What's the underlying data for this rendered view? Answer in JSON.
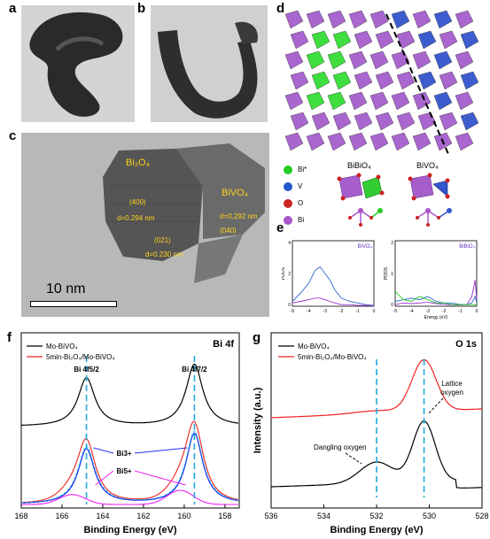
{
  "panels": {
    "a": {
      "label": "a"
    },
    "b": {
      "label": "b"
    },
    "c": {
      "label": "c",
      "bi2o4": "Bi₂O₄",
      "bivo4": "BiVO₄",
      "plane_400": "(400)",
      "plane_021": "(021)",
      "plane_040": "(040)",
      "d_400": "d=0.294 nm",
      "d_021": "d=0.230 nm",
      "d_040": "d=0.292 nm",
      "scalebar": "10 nm"
    },
    "d": {
      "label": "d",
      "legend": [
        "Bi*",
        "V",
        "O",
        "Bi"
      ],
      "legend_colors": [
        "#22cc22",
        "#2255cc",
        "#cc2222",
        "#aa55cc"
      ],
      "cluster_bibio": "BiBiO₄",
      "cluster_bivo": "BiVO₄"
    },
    "e": {
      "label": "e",
      "left_title": "BiVO₄",
      "right_title": "BiBiO₄",
      "ylabel": "PDOS",
      "xlabel": "Energy (eV)",
      "left_yticks": [
        "4",
        "2",
        "0"
      ],
      "right_yticks": [
        "2",
        "1",
        "0"
      ],
      "xticks": [
        "-5",
        "-4",
        "-3",
        "-2",
        "-1",
        "0"
      ]
    },
    "f": {
      "label": "f",
      "title": "Bi 4f",
      "legend": [
        "Mo-BiVO₄",
        "5min-Bi₂O₄/Mo-BiVO₄"
      ],
      "peak_left": "Bi 4f5/2",
      "peak_right": "Bi 4f7/2",
      "bi3": "Bi3+",
      "bi5": "Bi5+",
      "xlabel": "Binding Energy (eV)",
      "xticks": [
        "168",
        "166",
        "164",
        "162",
        "160",
        "158"
      ]
    },
    "g": {
      "label": "g",
      "title": "O 1s",
      "legend": [
        "Mo-BiVO₄",
        "5min-Bi₂O₄/Mo-BiVO₄"
      ],
      "lattice": "Lattice oxygen",
      "dangling": "Dangling oxygen",
      "ylabel": "Intensity (a.u.)",
      "xlabel": "Binding Energy (eV)",
      "xticks": [
        "536",
        "534",
        "532",
        "530",
        "528"
      ]
    }
  },
  "chart_data": [
    {
      "type": "line",
      "panel": "e-left",
      "title": "BiVO₄",
      "xlabel": "Energy (eV)",
      "ylabel": "PDOS",
      "xlim": [
        -5,
        0
      ],
      "ylim": [
        0,
        4
      ],
      "x": [
        -5,
        -4.5,
        -4,
        -3.6,
        -3.3,
        -3,
        -2.7,
        -2.4,
        -2,
        -1.5,
        -1,
        -0.5,
        0
      ],
      "series": [
        {
          "color": "#3366cc",
          "values": [
            0.3,
            0.8,
            1.4,
            2.2,
            2.4,
            2.0,
            1.6,
            1.0,
            0.5,
            0.3,
            0.2,
            0.1,
            0.05
          ]
        },
        {
          "color": "#9933cc",
          "values": [
            0.2,
            0.3,
            0.4,
            0.5,
            0.5,
            0.4,
            0.3,
            0.2,
            0.1,
            0.1,
            0.05,
            0.05,
            0.02
          ]
        }
      ]
    },
    {
      "type": "line",
      "panel": "e-right",
      "title": "BiBiO₄",
      "xlabel": "Energy (eV)",
      "ylabel": "PDOS",
      "xlim": [
        -5,
        0
      ],
      "ylim": [
        0,
        2
      ],
      "x": [
        -5,
        -4.5,
        -4,
        -3.5,
        -3,
        -2.5,
        -2,
        -1.5,
        -1,
        -0.6,
        -0.3,
        -0.1,
        0
      ],
      "series": [
        {
          "color": "#3366cc",
          "values": [
            0.15,
            0.2,
            0.25,
            0.2,
            0.3,
            0.15,
            0.1,
            0.1,
            0.05,
            0.05,
            0.1,
            0.3,
            0.1
          ]
        },
        {
          "color": "#9933cc",
          "values": [
            0.05,
            0.1,
            0.08,
            0.1,
            0.12,
            0.08,
            0.06,
            0.04,
            0.04,
            0.05,
            0.3,
            0.8,
            0.2
          ]
        },
        {
          "color": "#22cc22",
          "values": [
            0.45,
            0.2,
            0.15,
            0.3,
            0.2,
            0.1,
            0.1,
            0.05,
            0.05,
            0.05,
            0.05,
            0.05,
            0.02
          ]
        }
      ]
    },
    {
      "type": "line",
      "panel": "f",
      "title": "Bi 4f",
      "xlabel": "Binding Energy (eV)",
      "xlim": [
        168,
        157.3
      ],
      "legend_position": "top-left",
      "peaks": {
        "Bi 4f5/2": 164.8,
        "Bi 4f7/2": 159.5
      },
      "series": [
        {
          "name": "Mo-BiVO₄",
          "color": "#000000"
        },
        {
          "name": "5min-Bi₂O₄/Mo-BiVO₄",
          "color": "#ee2222"
        }
      ]
    },
    {
      "type": "line",
      "panel": "g",
      "title": "O 1s",
      "xlabel": "Binding Energy (eV)",
      "ylabel": "Intensity (a.u.)",
      "xlim": [
        536,
        528
      ],
      "legend_position": "top-left",
      "peaks": {
        "Lattice oxygen": 530.2,
        "Dangling oxygen": 532.0
      },
      "series": [
        {
          "name": "Mo-BiVO₄",
          "color": "#000000"
        },
        {
          "name": "5min-Bi₂O₄/Mo-BiVO₄",
          "color": "#ee2222"
        }
      ]
    }
  ]
}
